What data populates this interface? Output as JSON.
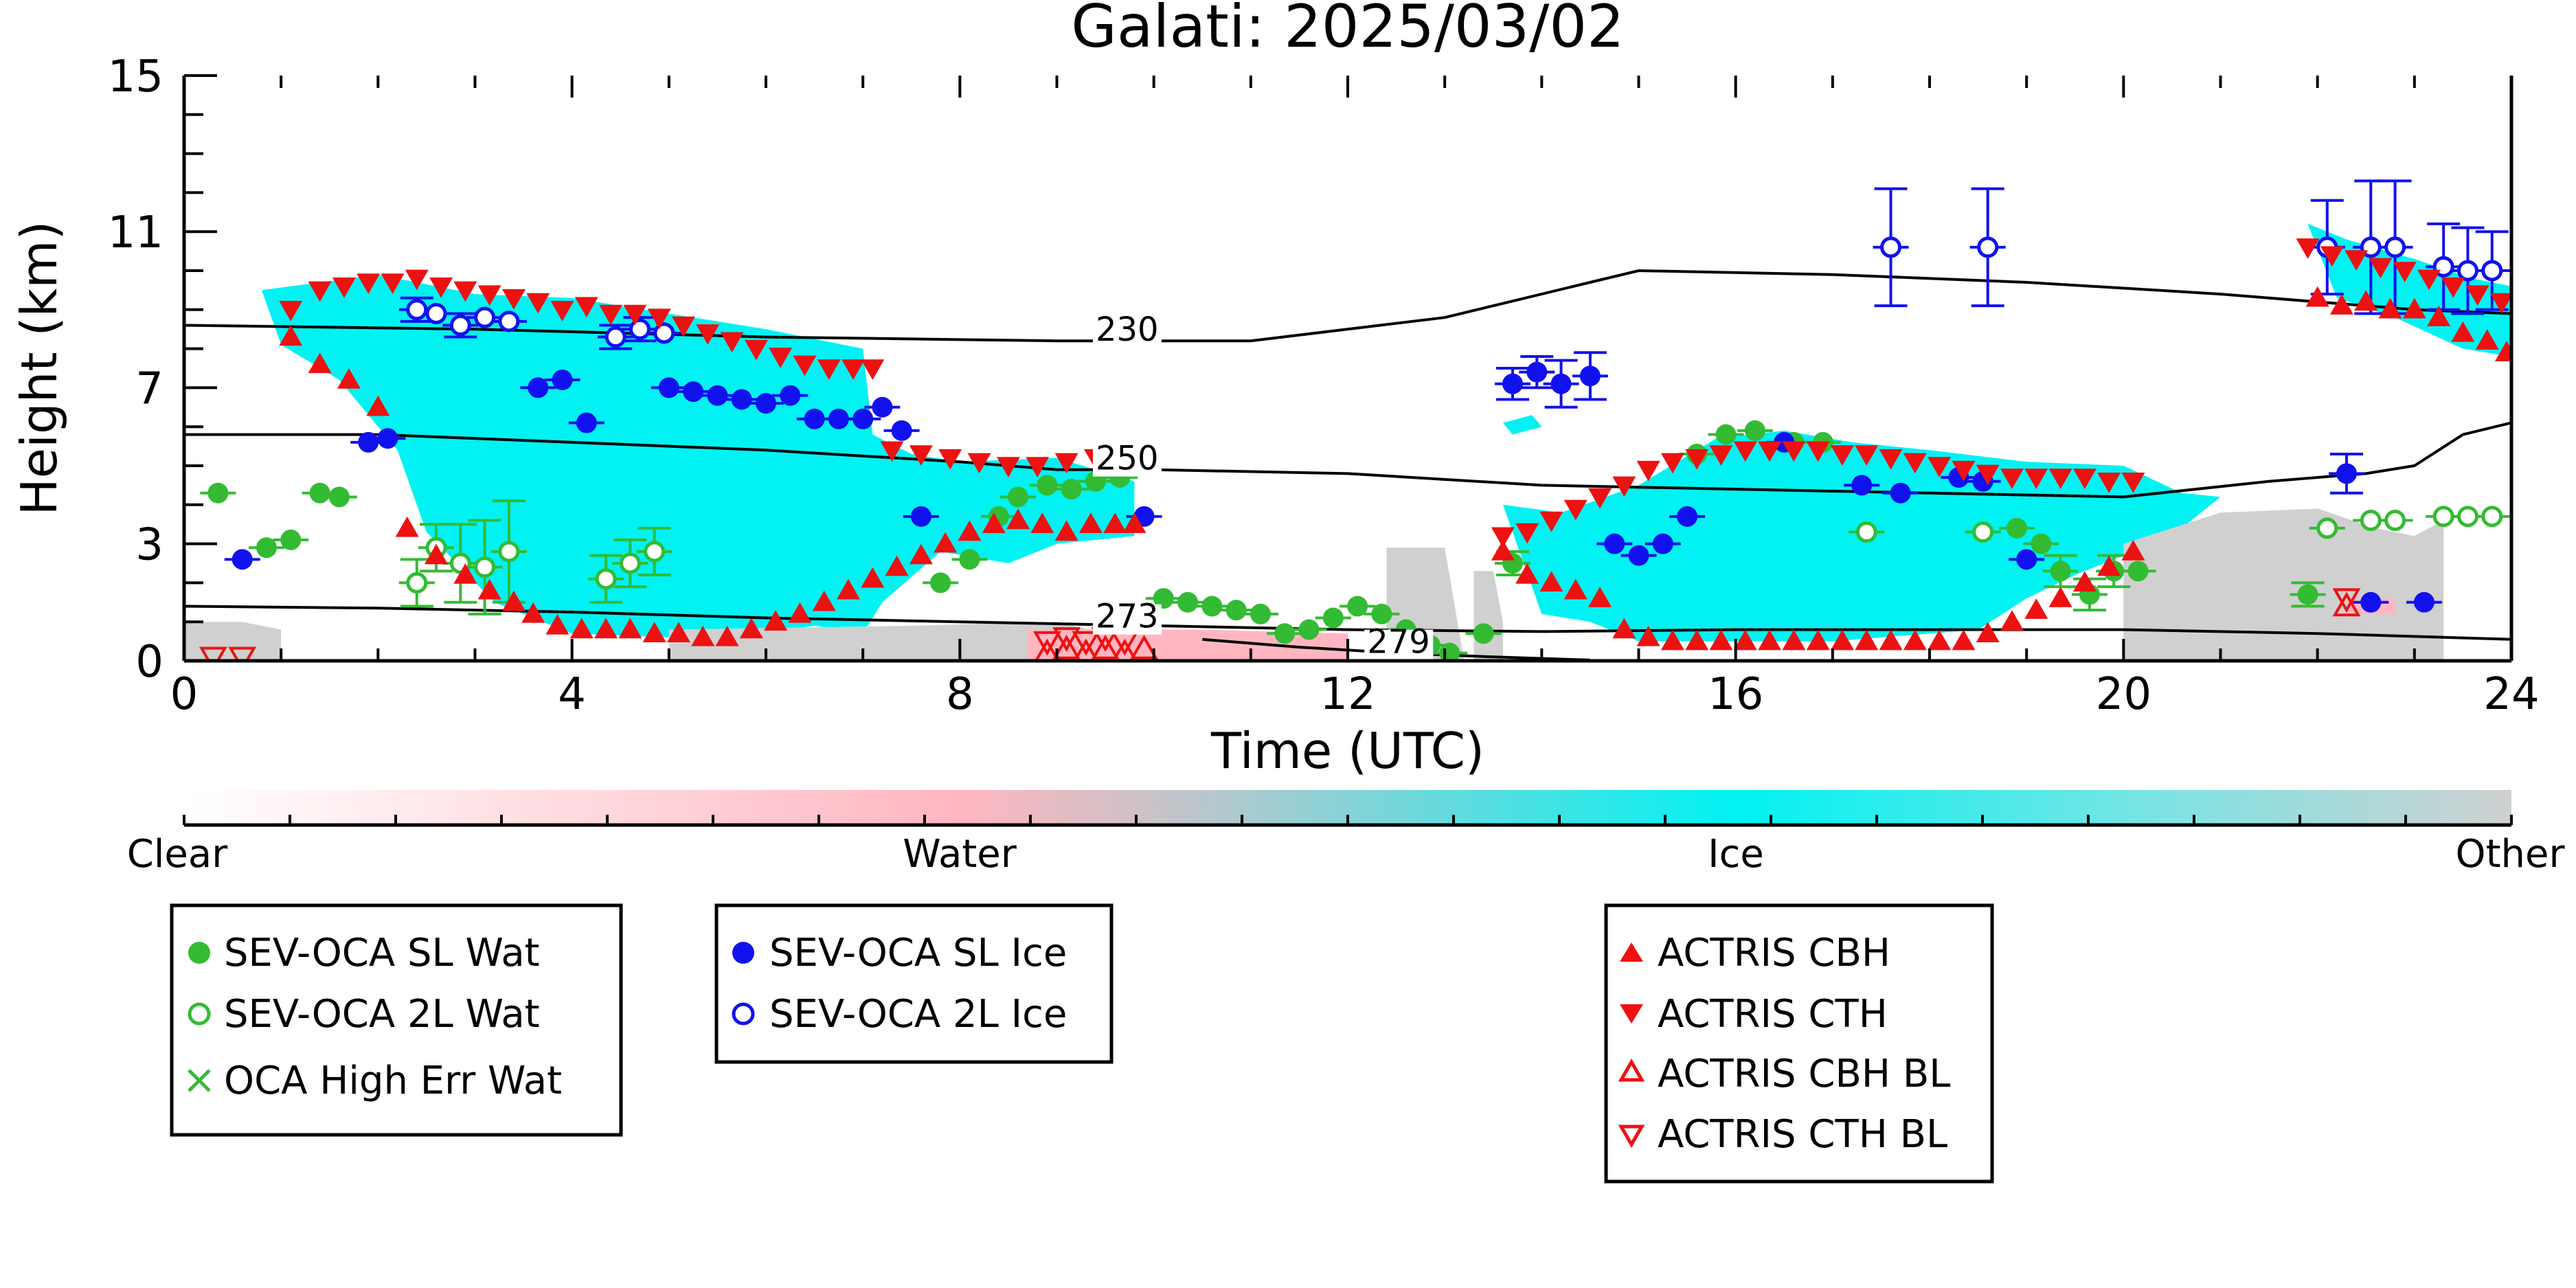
{
  "colors": {
    "sl_wat": "#33bb33",
    "sl_ice": "#1111ee",
    "actris": "#ee1111",
    "ice": "#00f2f2",
    "water": "#ffb6c1",
    "other": "#d0d0d0",
    "contour": "#000000"
  },
  "chart_data": {
    "type": "scatter",
    "title": "Galati: 2025/03/02",
    "xlabel": "Time (UTC)",
    "ylabel": "Height (km)",
    "xlim": [
      0,
      24
    ],
    "ylim": [
      0,
      15
    ],
    "xticks": [
      0,
      4,
      8,
      12,
      16,
      20,
      24
    ],
    "yticks": [
      0,
      3,
      7,
      11,
      15
    ],
    "grid": false,
    "colorbar": {
      "labels": [
        "Clear",
        "Water",
        "Ice",
        "Other"
      ],
      "positions": [
        0,
        0.333,
        0.667,
        1.0
      ]
    },
    "legend": [
      [
        {
          "label": "SEV-OCA SL Wat",
          "marker": "filled-circle",
          "color": "#33bb33"
        },
        {
          "label": "SEV-OCA 2L Wat",
          "marker": "open-circle",
          "color": "#33bb33"
        },
        {
          "label": "OCA High Err Wat",
          "marker": "x",
          "color": "#33bb33"
        }
      ],
      [
        {
          "label": "SEV-OCA SL Ice",
          "marker": "filled-circle",
          "color": "#1111ee"
        },
        {
          "label": "SEV-OCA 2L Ice",
          "marker": "open-circle",
          "color": "#1111ee"
        }
      ],
      [
        {
          "label": "ACTRIS CBH",
          "marker": "triangle-up",
          "color": "#ee1111"
        },
        {
          "label": "ACTRIS CTH",
          "marker": "triangle-down",
          "color": "#ee1111"
        },
        {
          "label": "ACTRIS CBH BL",
          "marker": "open-triangle-up",
          "color": "#ee1111"
        },
        {
          "label": "ACTRIS CTH BL",
          "marker": "open-triangle-down",
          "color": "#ee1111"
        }
      ]
    ],
    "contours": [
      {
        "label": "230",
        "label_at": [
          9.4,
          8.2
        ],
        "x": [
          0,
          3,
          6,
          9,
          11,
          13,
          14.5,
          15,
          17,
          19,
          21,
          23,
          24
        ],
        "y": [
          8.6,
          8.5,
          8.3,
          8.2,
          8.2,
          8.8,
          9.7,
          10.0,
          9.9,
          9.7,
          9.4,
          9.0,
          8.9
        ]
      },
      {
        "label": "250",
        "label_at": [
          9.4,
          4.9
        ],
        "x": [
          0,
          2,
          4,
          6,
          8,
          9,
          10,
          12,
          14,
          16,
          18,
          20,
          21.5,
          22.5,
          23,
          23.5,
          24
        ],
        "y": [
          5.8,
          5.8,
          5.6,
          5.4,
          5.1,
          4.9,
          4.9,
          4.8,
          4.5,
          4.4,
          4.3,
          4.2,
          4.6,
          4.8,
          5.0,
          5.8,
          6.1
        ]
      },
      {
        "label": "273",
        "label_at": [
          9.4,
          0.85
        ],
        "x": [
          0,
          2,
          4,
          6,
          8,
          10,
          12,
          14,
          16,
          18,
          20,
          22,
          24
        ],
        "y": [
          1.4,
          1.35,
          1.25,
          1.1,
          1.0,
          0.9,
          0.8,
          0.75,
          0.8,
          0.8,
          0.8,
          0.7,
          0.55
        ]
      },
      {
        "label": "279",
        "label_at": [
          12.2,
          0.2
        ],
        "x": [
          10.5,
          11.5,
          12.5,
          13.5,
          14.5
        ],
        "y": [
          0.55,
          0.35,
          0.2,
          0.1,
          0.02
        ]
      }
    ],
    "cloud_regions": [
      {
        "phase": "ice",
        "x": [
          0.8,
          2.0,
          3.0,
          4.0,
          5.0,
          6.0,
          7.0,
          7.1,
          7.5,
          8.0,
          9.0,
          9.8,
          9.8,
          9.0,
          8.5,
          7.8,
          7.2,
          7.0,
          6.5,
          6.0,
          5.0,
          4.0,
          3.2,
          2.5,
          2.2,
          1.6,
          1.0,
          0.8
        ],
        "y": [
          9.5,
          9.9,
          9.4,
          9.3,
          8.9,
          8.5,
          8.0,
          5.8,
          5.3,
          5.1,
          5.2,
          4.6,
          3.2,
          3.0,
          2.5,
          2.8,
          1.5,
          0.7,
          0.9,
          0.7,
          0.6,
          0.7,
          1.5,
          3.3,
          5.4,
          7.2,
          8.1,
          9.5
        ]
      },
      {
        "phase": "ice",
        "x": [
          13.6,
          14.2,
          15.0,
          15.8,
          16.5,
          17.2,
          18.0,
          19.0,
          20.0,
          20.6,
          21.0,
          20.5,
          19.5,
          19.0,
          18.5,
          17.0,
          16.0,
          15.0,
          14.5,
          14.0,
          13.6
        ],
        "y": [
          4.0,
          3.8,
          4.5,
          5.7,
          5.9,
          5.6,
          5.4,
          5.1,
          5.0,
          4.3,
          4.2,
          3.2,
          2.2,
          1.6,
          0.8,
          0.5,
          0.5,
          0.5,
          1.0,
          1.2,
          4.0
        ]
      },
      {
        "phase": "ice",
        "x": [
          21.9,
          22.3,
          23.0,
          23.6,
          24.0,
          24.0,
          23.5,
          22.8,
          22.2,
          21.9
        ],
        "y": [
          11.2,
          10.8,
          10.3,
          9.8,
          9.6,
          7.8,
          8.0,
          8.8,
          9.3,
          11.2
        ]
      },
      {
        "phase": "ice",
        "x": [
          13.6,
          13.9,
          14.0,
          13.7
        ],
        "y": [
          6.1,
          6.3,
          6.0,
          5.8
        ]
      },
      {
        "phase": "other",
        "x": [
          0.0,
          0.6,
          1.0,
          1.0,
          0.0
        ],
        "y": [
          1.0,
          1.0,
          0.8,
          0.0,
          0.0
        ]
      },
      {
        "phase": "other",
        "x": [
          5.0,
          7.5,
          9.0,
          9.5,
          9.5,
          5.0
        ],
        "y": [
          0.8,
          0.9,
          1.0,
          0.7,
          0.0,
          0.0
        ]
      },
      {
        "phase": "other",
        "x": [
          12.4,
          13.0,
          13.2,
          13.0,
          12.4
        ],
        "y": [
          2.9,
          2.9,
          0.0,
          0.0,
          0.0
        ]
      },
      {
        "phase": "other",
        "x": [
          13.3,
          13.5,
          13.6,
          13.6,
          13.3
        ],
        "y": [
          2.3,
          2.3,
          1.0,
          0.0,
          0.0
        ]
      },
      {
        "phase": "other",
        "x": [
          20.0,
          21.0,
          22.0,
          22.6,
          23.0,
          23.3,
          23.3,
          20.0
        ],
        "y": [
          3.0,
          3.8,
          3.9,
          3.4,
          3.2,
          3.6,
          0.0,
          0.0
        ]
      },
      {
        "phase": "water",
        "x": [
          8.7,
          10.5,
          12.0,
          12.0,
          8.7
        ],
        "y": [
          0.8,
          0.8,
          0.7,
          0.0,
          0.0
        ]
      },
      {
        "phase": "water",
        "x": [
          22.3,
          22.8,
          22.8,
          22.3
        ],
        "y": [
          1.6,
          1.6,
          1.2,
          1.2
        ]
      }
    ],
    "series": [
      {
        "name": "SEV-OCA SL Wat",
        "marker": "filled-circle",
        "color": "#33bb33",
        "x": [
          0.35,
          0.85,
          1.1,
          1.4,
          1.6,
          7.8,
          8.1,
          8.4,
          8.6,
          8.9,
          9.15,
          9.4,
          9.65,
          10.1,
          10.35,
          10.6,
          10.85,
          11.1,
          11.35,
          11.6,
          11.85,
          12.1,
          12.35,
          12.6,
          12.85,
          13.05,
          13.4,
          13.7,
          15.6,
          15.9,
          16.2,
          16.6,
          16.9,
          18.9,
          19.15,
          19.35,
          19.65,
          19.9,
          20.15,
          21.9
        ],
        "y": [
          4.3,
          2.9,
          3.1,
          4.3,
          4.2,
          2.0,
          2.6,
          3.7,
          4.2,
          4.5,
          4.4,
          4.6,
          4.7,
          1.6,
          1.5,
          1.4,
          1.3,
          1.2,
          0.7,
          0.8,
          1.1,
          1.4,
          1.2,
          0.8,
          0.4,
          0.2,
          0.7,
          2.5,
          5.3,
          5.8,
          5.9,
          5.6,
          5.6,
          3.4,
          3.0,
          2.3,
          1.7,
          2.3,
          2.3,
          1.7
        ],
        "err": [
          0,
          0,
          0,
          0,
          0,
          0,
          0,
          0,
          0,
          0,
          0,
          0,
          0,
          0,
          0,
          0,
          0,
          0,
          0,
          0,
          0,
          0,
          0,
          0,
          0,
          0,
          0,
          0.3,
          0,
          0,
          0,
          0,
          0,
          0,
          0,
          0.4,
          0.4,
          0.4,
          0,
          0.3
        ]
      },
      {
        "name": "SEV-OCA 2L Wat",
        "marker": "open-circle",
        "color": "#33bb33",
        "x": [
          2.4,
          2.6,
          2.85,
          3.1,
          3.35,
          4.35,
          4.6,
          4.85,
          17.35,
          18.55,
          22.1,
          22.55,
          22.8,
          23.3,
          23.55,
          23.8
        ],
        "y": [
          2.0,
          2.9,
          2.5,
          2.4,
          2.8,
          2.1,
          2.5,
          2.8,
          3.3,
          3.3,
          3.4,
          3.6,
          3.6,
          3.7,
          3.7,
          3.7
        ],
        "err": [
          0.6,
          0.6,
          1.0,
          1.2,
          1.3,
          0.6,
          0.6,
          0.6,
          0,
          0,
          0,
          0,
          0,
          0,
          0,
          0
        ]
      },
      {
        "name": "OCA High Err Wat",
        "marker": "x",
        "color": "#33bb33",
        "x": [],
        "y": [],
        "err": []
      },
      {
        "name": "SEV-OCA SL Ice",
        "marker": "filled-circle",
        "color": "#1111ee",
        "x": [
          0.6,
          1.9,
          2.1,
          3.65,
          3.9,
          4.15,
          5.0,
          5.25,
          5.5,
          5.75,
          6.0,
          6.25,
          6.5,
          6.75,
          7.0,
          7.2,
          7.4,
          7.6,
          9.9,
          13.7,
          13.95,
          14.2,
          14.5,
          14.75,
          15.0,
          15.25,
          15.5,
          16.5,
          17.3,
          17.7,
          18.3,
          18.55,
          19.0,
          22.3,
          22.55,
          23.1
        ],
        "y": [
          2.6,
          5.6,
          5.7,
          7.0,
          7.2,
          6.1,
          7.0,
          6.9,
          6.8,
          6.7,
          6.6,
          6.8,
          6.2,
          6.2,
          6.2,
          6.5,
          5.9,
          3.7,
          3.7,
          7.1,
          7.4,
          7.1,
          7.3,
          3.0,
          2.7,
          3.0,
          3.7,
          5.6,
          4.5,
          4.3,
          4.7,
          4.6,
          2.6,
          4.8,
          1.5,
          1.5
        ],
        "err": [
          0,
          0,
          0,
          0,
          0,
          0,
          0,
          0,
          0,
          0,
          0,
          0,
          0,
          0,
          0,
          0,
          0,
          0,
          0,
          0.4,
          0.4,
          0.6,
          0.6,
          0,
          0,
          0,
          0,
          0,
          0,
          0,
          0,
          0,
          0,
          0.5,
          0,
          0
        ]
      },
      {
        "name": "SEV-OCA 2L Ice",
        "marker": "open-circle",
        "color": "#1111ee",
        "x": [
          2.4,
          2.6,
          2.85,
          3.1,
          3.35,
          4.45,
          4.7,
          4.95,
          17.6,
          18.6,
          22.1,
          22.55,
          22.8,
          23.3,
          23.55,
          23.8
        ],
        "y": [
          9.0,
          8.9,
          8.6,
          8.8,
          8.7,
          8.3,
          8.5,
          8.4,
          10.6,
          10.6,
          10.6,
          10.6,
          10.6,
          10.1,
          10.0,
          10.0
        ],
        "err": [
          0.3,
          0,
          0.3,
          0,
          0,
          0.3,
          0.3,
          0,
          1.5,
          1.5,
          1.2,
          1.7,
          1.7,
          1.1,
          1.1,
          1.0
        ]
      },
      {
        "name": "ACTRIS CBH",
        "marker": "triangle-up",
        "color": "#ee1111",
        "x": [
          1.1,
          1.4,
          1.7,
          2.0,
          2.3,
          2.6,
          2.9,
          3.15,
          3.4,
          3.6,
          3.85,
          4.1,
          4.35,
          4.6,
          4.85,
          5.1,
          5.35,
          5.6,
          5.85,
          6.1,
          6.35,
          6.6,
          6.85,
          7.1,
          7.35,
          7.6,
          7.85,
          8.1,
          8.35,
          8.6,
          8.85,
          9.1,
          9.35,
          9.6,
          9.8,
          13.6,
          13.85,
          14.1,
          14.35,
          14.6,
          14.85,
          15.1,
          15.35,
          15.6,
          15.85,
          16.1,
          16.35,
          16.6,
          16.85,
          17.1,
          17.35,
          17.6,
          17.85,
          18.1,
          18.35,
          18.6,
          18.85,
          19.1,
          19.35,
          19.6,
          19.85,
          20.1,
          22.0,
          22.25,
          22.5,
          22.75,
          23.0,
          23.25,
          23.5,
          23.75,
          23.95
        ],
        "y": [
          8.3,
          7.6,
          7.2,
          6.5,
          3.4,
          2.7,
          2.2,
          1.8,
          1.5,
          1.2,
          0.9,
          0.8,
          0.8,
          0.8,
          0.7,
          0.7,
          0.6,
          0.6,
          0.8,
          1.0,
          1.2,
          1.5,
          1.8,
          2.1,
          2.4,
          2.7,
          3.0,
          3.3,
          3.5,
          3.6,
          3.5,
          3.3,
          3.5,
          3.5,
          3.5,
          2.8,
          2.2,
          2.0,
          1.8,
          1.6,
          0.8,
          0.6,
          0.5,
          0.5,
          0.5,
          0.5,
          0.5,
          0.5,
          0.5,
          0.5,
          0.5,
          0.5,
          0.5,
          0.5,
          0.5,
          0.7,
          1.0,
          1.3,
          1.6,
          2.0,
          2.4,
          2.8,
          9.3,
          9.1,
          9.2,
          9.0,
          9.0,
          8.8,
          8.4,
          8.2,
          7.9
        ],
        "err": []
      },
      {
        "name": "ACTRIS CTH",
        "marker": "triangle-down",
        "color": "#ee1111",
        "x": [
          1.1,
          1.4,
          1.65,
          1.9,
          2.15,
          2.4,
          2.65,
          2.9,
          3.15,
          3.4,
          3.65,
          3.9,
          4.15,
          4.4,
          4.65,
          4.9,
          5.15,
          5.4,
          5.65,
          5.9,
          6.15,
          6.4,
          6.65,
          6.9,
          7.1,
          7.3,
          7.6,
          7.9,
          8.2,
          8.5,
          8.8,
          9.1,
          9.4,
          9.65,
          13.6,
          13.85,
          14.1,
          14.35,
          14.6,
          14.85,
          15.1,
          15.35,
          15.6,
          15.85,
          16.1,
          16.35,
          16.6,
          16.85,
          17.1,
          17.35,
          17.6,
          17.85,
          18.1,
          18.35,
          18.6,
          18.85,
          19.1,
          19.35,
          19.6,
          19.85,
          20.1,
          21.9,
          22.15,
          22.4,
          22.65,
          22.9,
          23.15,
          23.4,
          23.65,
          23.9
        ],
        "y": [
          9.0,
          9.5,
          9.6,
          9.7,
          9.7,
          9.8,
          9.6,
          9.5,
          9.4,
          9.3,
          9.2,
          9.0,
          9.1,
          8.9,
          8.9,
          8.8,
          8.6,
          8.4,
          8.2,
          8.0,
          7.8,
          7.6,
          7.5,
          7.5,
          7.5,
          5.4,
          5.3,
          5.2,
          5.1,
          5.0,
          5.0,
          5.1,
          5.2,
          5.1,
          3.2,
          3.3,
          3.6,
          3.9,
          4.2,
          4.5,
          4.9,
          5.1,
          5.2,
          5.3,
          5.4,
          5.4,
          5.4,
          5.4,
          5.3,
          5.3,
          5.2,
          5.1,
          5.0,
          4.9,
          4.8,
          4.7,
          4.7,
          4.7,
          4.7,
          4.6,
          4.6,
          10.6,
          10.4,
          10.3,
          10.1,
          10.0,
          9.8,
          9.6,
          9.4,
          9.2
        ],
        "err": []
      },
      {
        "name": "ACTRIS CBH BL",
        "marker": "open-triangle-up",
        "color": "#ee1111",
        "x": [
          8.9,
          9.1,
          9.3,
          9.5,
          9.7,
          9.9,
          22.3
        ],
        "y": [
          0.2,
          0.3,
          0.2,
          0.3,
          0.2,
          0.3,
          1.4
        ],
        "err": []
      },
      {
        "name": "ACTRIS CTH BL",
        "marker": "open-triangle-down",
        "color": "#ee1111",
        "x": [
          0.3,
          0.6,
          8.9,
          9.1,
          9.3,
          9.5,
          9.7,
          22.3
        ],
        "y": [
          0.1,
          0.1,
          0.5,
          0.6,
          0.5,
          0.6,
          0.5,
          1.6
        ],
        "err": []
      }
    ]
  }
}
